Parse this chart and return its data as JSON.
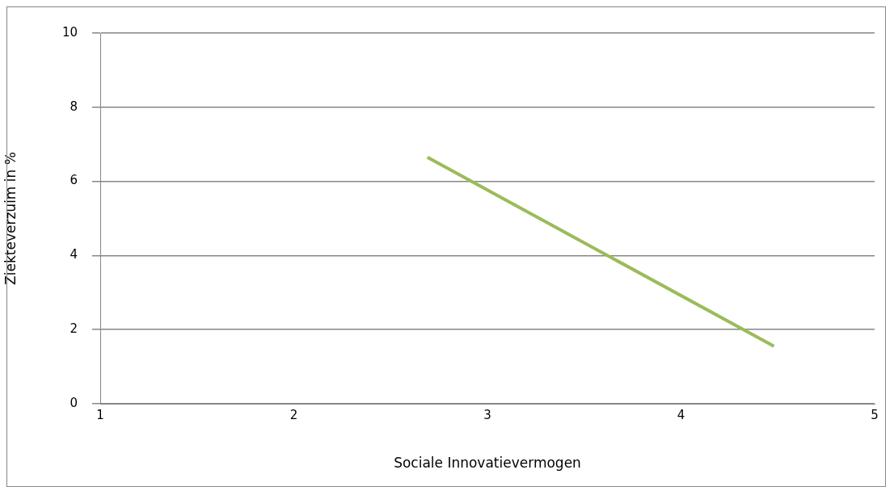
{
  "chart_data": {
    "type": "line",
    "xlabel": "Sociale Innovatievermogen",
    "ylabel": "Ziekteverzuim in %",
    "x": [
      2.69,
      4.48
    ],
    "series": [
      {
        "color": "#9bbb59",
        "values": [
          6.65,
          1.55
        ]
      }
    ],
    "xlim": [
      1,
      5
    ],
    "xticks": [
      1,
      2,
      3,
      4,
      5
    ],
    "ylim": [
      0,
      10
    ],
    "yticks": [
      0,
      2,
      4,
      6,
      8,
      10
    ],
    "grid": "y",
    "legend": false,
    "marker": "none",
    "line_style": "solid"
  }
}
